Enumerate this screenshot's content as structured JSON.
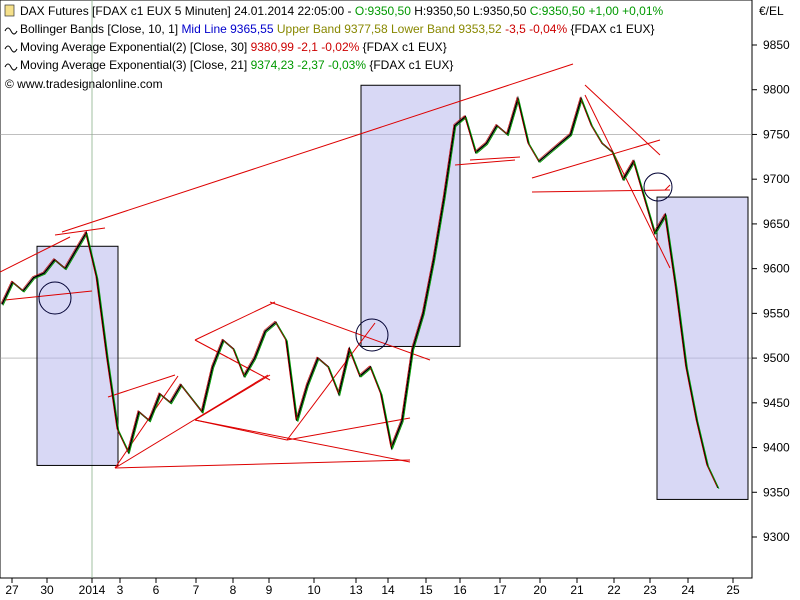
{
  "legend": {
    "line1": {
      "name": "DAX Futures [FDAX c1 EUX  5 Minuten] 24.01.2014 22:05:00 - ",
      "o": "O:9350,50",
      "h": "H:9350,50",
      "l": "L:9350,50",
      "c": "C:9350,50",
      "chg": "+1,00 +0,01%"
    },
    "line2": {
      "name": "Bollinger Bands [Close, 10, 1] ",
      "mid": "Mid Line 9365,55",
      "upper": "Upper Band 9377,58",
      "lower": "Lower Band 9353,52",
      "chg": "-3,5 -0,04%",
      "tail": " {FDAX c1 EUX}"
    },
    "line3": {
      "name": "Moving Average Exponential(2) [Close, 30] ",
      "val": "9380,99 -2,1 -0,02%",
      "tail": " {FDAX c1 EUX}"
    },
    "line4": {
      "name": "Moving Average Exponential(3) [Close, 21] ",
      "val": "9374,23 -2,37 -0,03%",
      "tail": " {FDAX c1 EUX}"
    },
    "copyright": "© www.tradesignalonline.com"
  },
  "colors": {
    "up": "#009900",
    "down": "#cc0000",
    "mid": "#0000cc",
    "upper": "#888800",
    "ema2": "#cc0000",
    "ema3": "#009900",
    "trend": "#dd0000",
    "box_fill": "#b8b8ec",
    "box_stroke": "#000000"
  },
  "chart_data": {
    "type": "line",
    "currency": "€/EL",
    "ylim": [
      9260,
      9880
    ],
    "y_ticks": [
      9300,
      9350,
      9400,
      9450,
      9500,
      9550,
      9600,
      9650,
      9700,
      9750,
      9800,
      9850
    ],
    "y_tick_labels": [
      "9300",
      "9350",
      "9400",
      "9450",
      "9500",
      "9550",
      "9600",
      "9650",
      "9700",
      "9750",
      "9800",
      "9850"
    ],
    "x_ticks": [
      "27",
      "30",
      "2014",
      "3",
      "6",
      "7",
      "8",
      "9",
      "10",
      "13",
      "14",
      "15",
      "16",
      "17",
      "20",
      "21",
      "22",
      "23",
      "24",
      "25"
    ],
    "series": [
      {
        "values": [
          9560,
          9585,
          9575,
          9590,
          9595,
          9610,
          9600,
          9620,
          9640,
          9590,
          9500,
          9420,
          9395,
          9440,
          9430,
          9460,
          9450,
          9470,
          9455,
          9440,
          9490,
          9520,
          9510,
          9480,
          9500,
          9530,
          9540,
          9520,
          9430,
          9470,
          9500,
          9490,
          9460,
          9510,
          9480,
          9490,
          9460,
          9400,
          9430,
          9510,
          9550,
          9610,
          9680,
          9760,
          9770,
          9730,
          9740,
          9760,
          9750,
          9790,
          9740,
          9720,
          9730,
          9740,
          9750,
          9790,
          9760,
          9740,
          9730,
          9700,
          9720,
          9680,
          9640,
          9660,
          9580,
          9490,
          9430,
          9380,
          9355
        ]
      }
    ],
    "highlight_boxes": [
      {
        "x_from": "30",
        "x_to": "3",
        "y_from": 9380,
        "y_to": 9625
      },
      {
        "x_from": "13",
        "x_to": "16",
        "y_from": 9513,
        "y_to": 9805
      },
      {
        "x_from": "23",
        "x_to": "25",
        "y_from": 9342,
        "y_to": 9680
      }
    ],
    "grid": false,
    "horizontal_reference_lines": [
      9750,
      9500
    ],
    "vertical_reference_line_at": "2014"
  }
}
